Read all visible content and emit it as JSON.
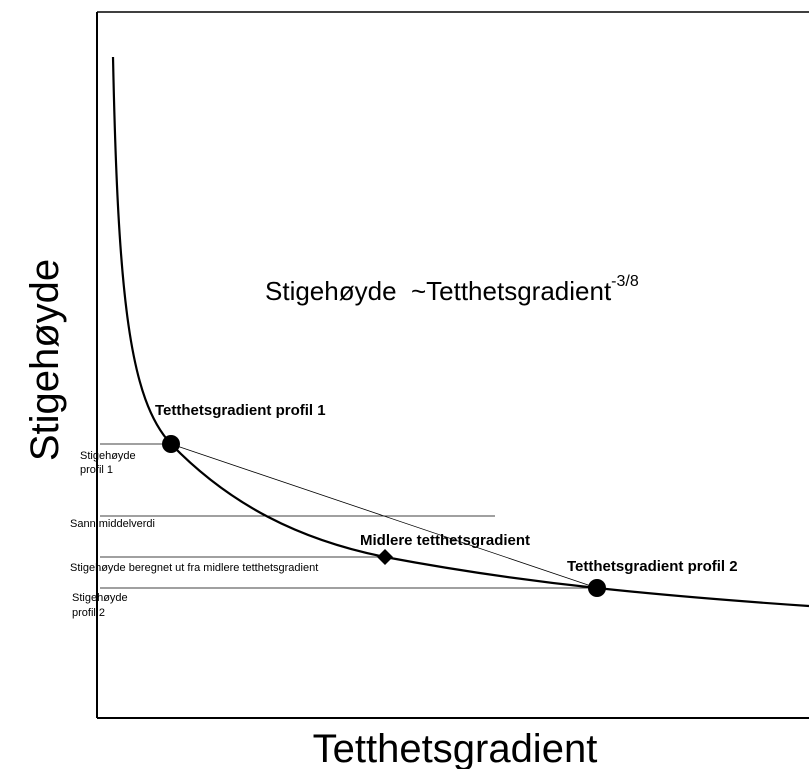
{
  "title": {
    "text": "Stigehøyde  ~Tetthetsgradient",
    "exponent": "-3/8"
  },
  "axes": {
    "y_label": "Stigehøyde",
    "x_label": "Tetthetsgradient"
  },
  "points": {
    "profile_1": "Tetthetsgradient profil 1",
    "mean": "Midlere tetthetsgradient",
    "profile_2": "Tetthetsgradient profil 2"
  },
  "levels": {
    "profile_1": [
      "Stigehøyde",
      "profil 1"
    ],
    "true_mean": "Sann middelverdi",
    "computed": "Stigehøyde beregnet ut fra midlere tetthetsgradient",
    "profile_2": [
      "Stigehøyde",
      "profil 2"
    ]
  }
}
